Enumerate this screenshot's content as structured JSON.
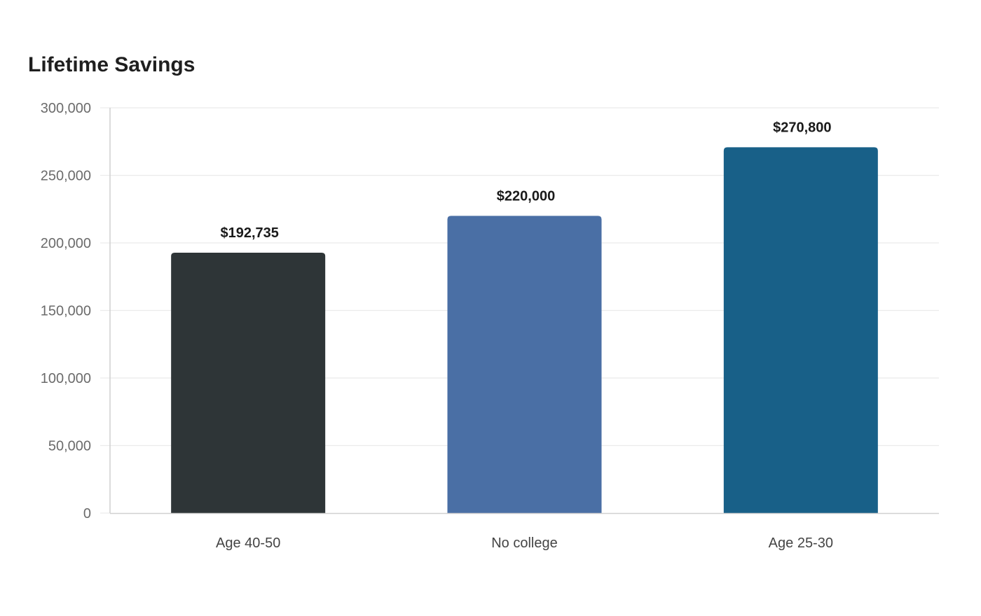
{
  "chart_data": {
    "type": "bar",
    "title": "Lifetime Savings",
    "xlabel": "",
    "ylabel": "",
    "categories": [
      "Age 40-50",
      "No college",
      "Age 25-30"
    ],
    "values": [
      192735,
      220000,
      270800
    ],
    "data_labels": [
      "$192,735",
      "$220,000",
      "$270,800"
    ],
    "colors": [
      "#2e3537",
      "#4a6fa5",
      "#186088"
    ],
    "ylim": [
      0,
      300000
    ],
    "yticks": [
      0,
      50000,
      100000,
      150000,
      200000,
      250000,
      300000
    ],
    "ytick_labels": [
      "0",
      "50,000",
      "100,000",
      "150,000",
      "200,000",
      "250,000",
      "300,000"
    ],
    "grid": true,
    "legend": "none"
  }
}
